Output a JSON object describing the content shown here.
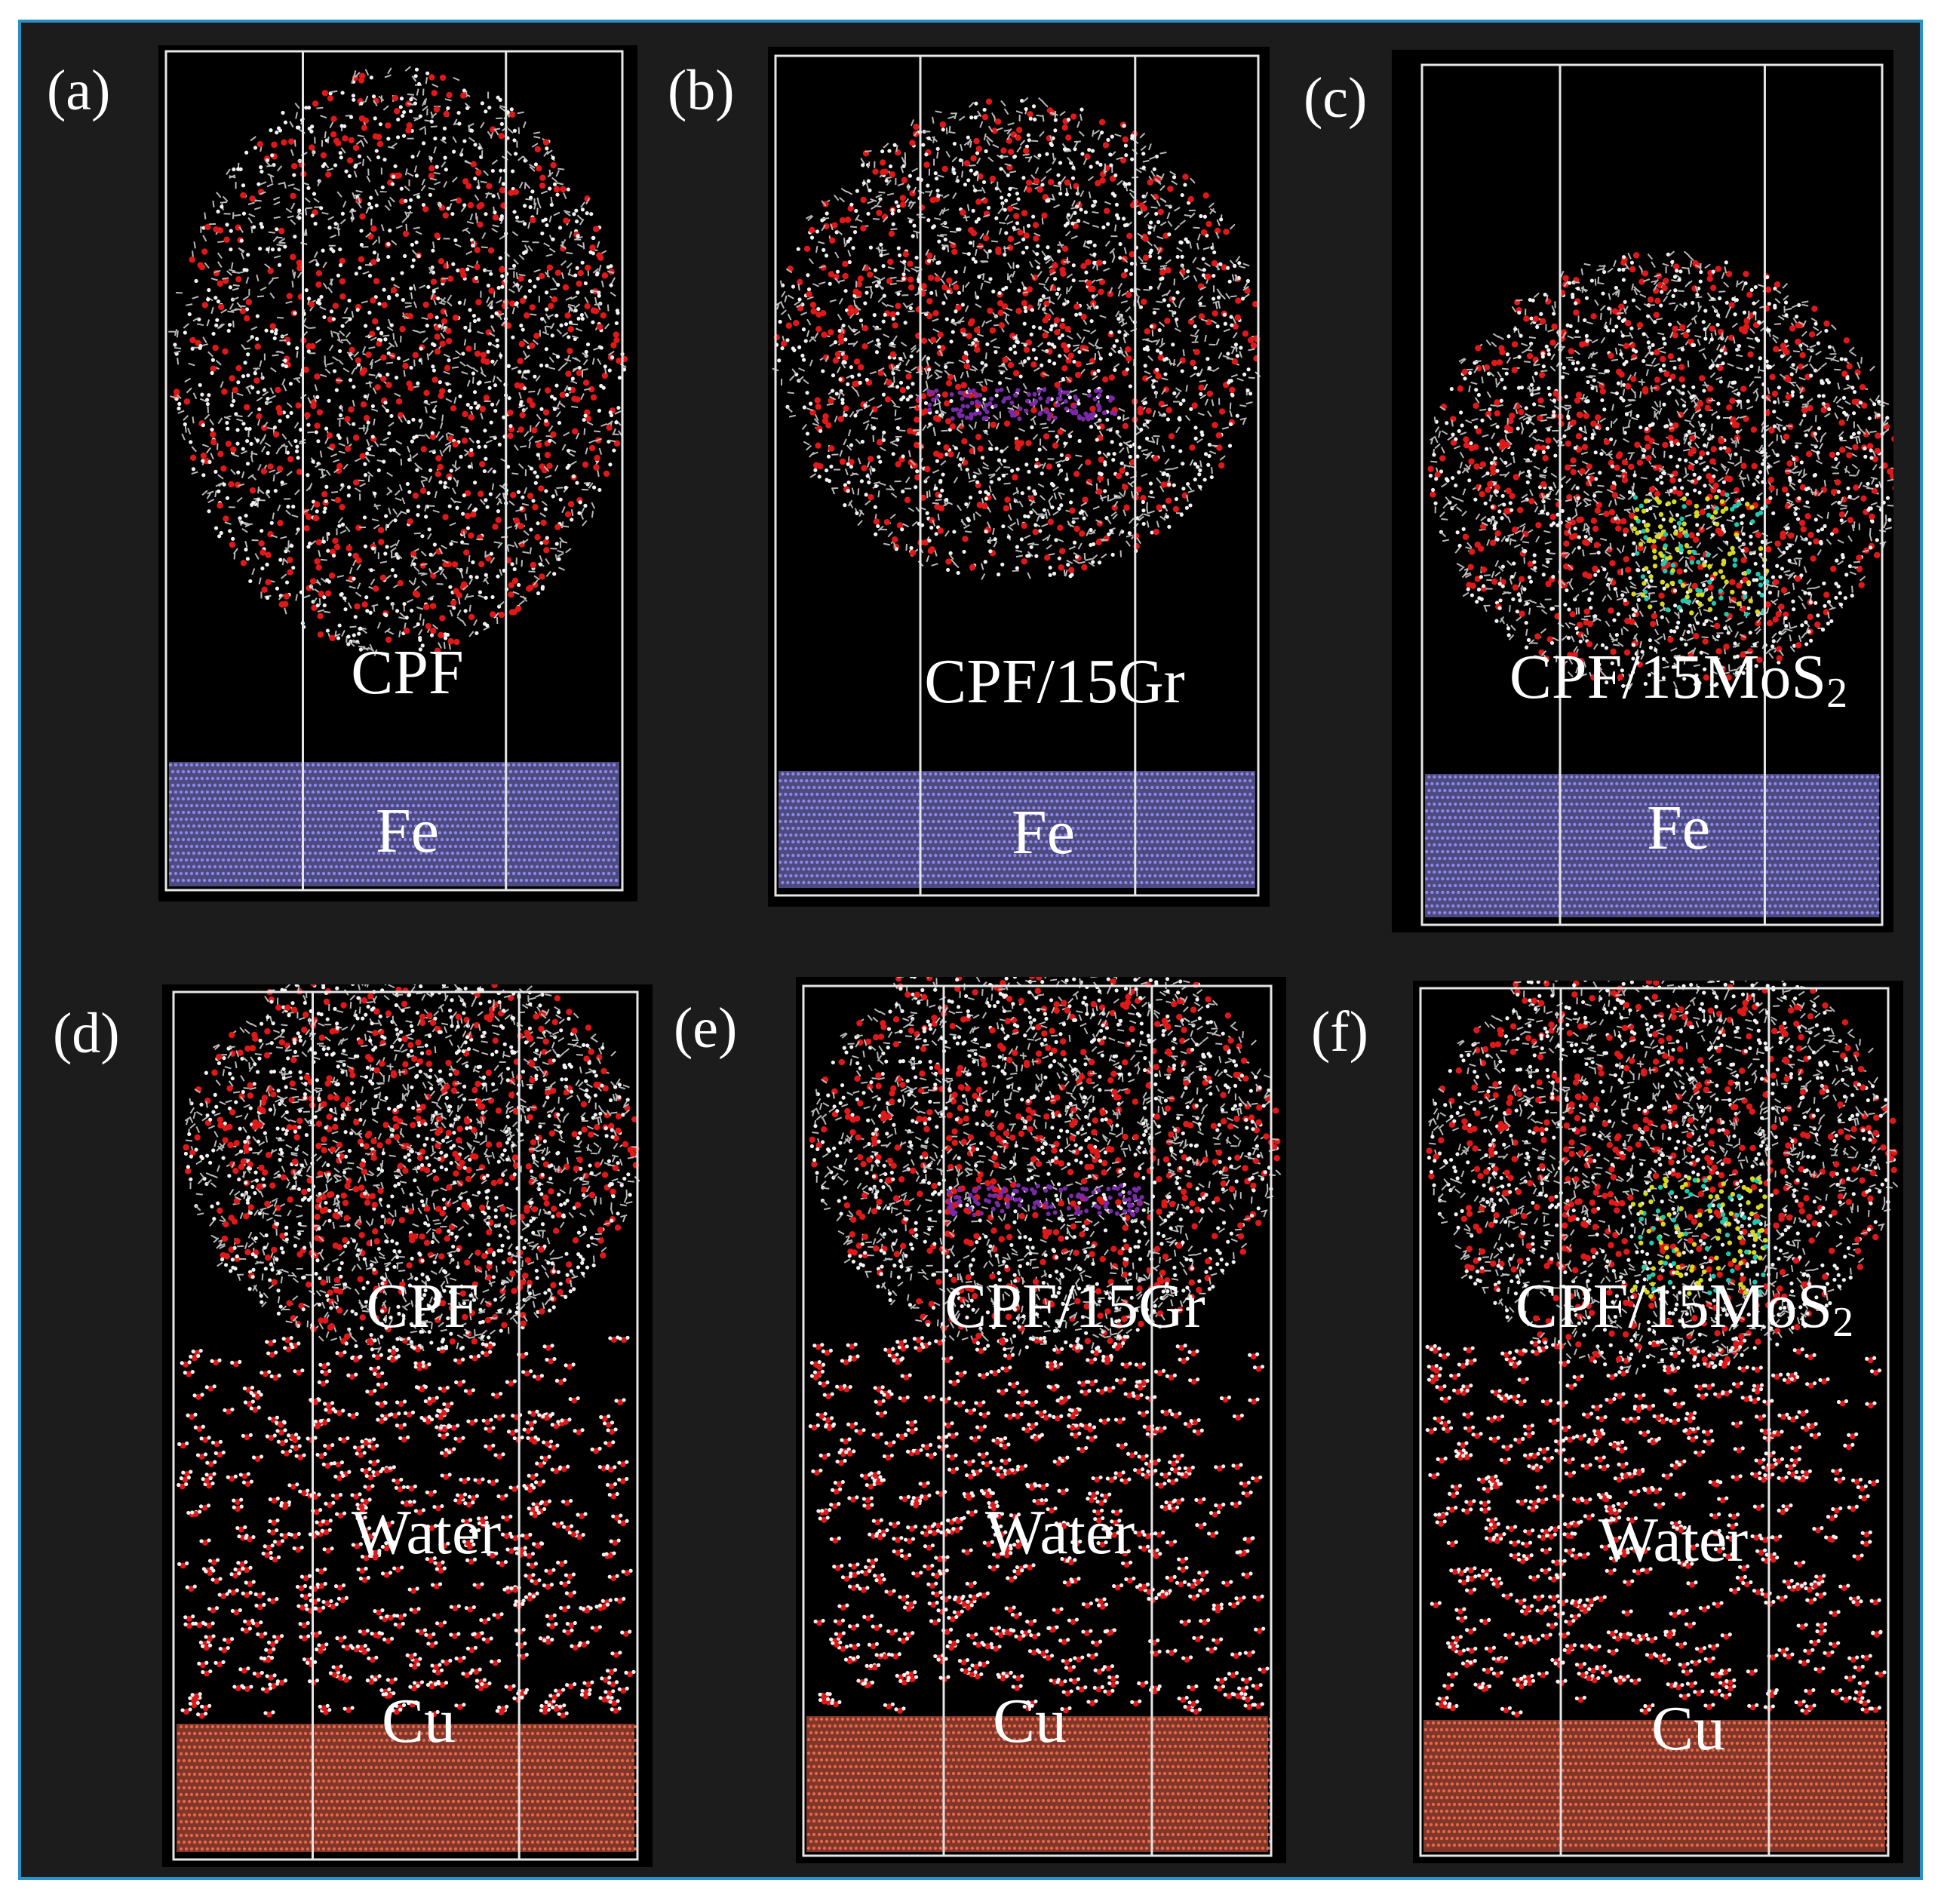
{
  "panels": [
    {
      "id": "a",
      "label": "(a)",
      "material": "CPF",
      "substrate": "Fe",
      "solvent": "",
      "additive": ""
    },
    {
      "id": "b",
      "label": "(b)",
      "material": "CPF/15Gr",
      "substrate": "Fe",
      "solvent": "",
      "additive": "graphene"
    },
    {
      "id": "c",
      "label": "(c)",
      "material_base": "CPF/15MoS",
      "material_sub": "2",
      "substrate": "Fe",
      "solvent": "",
      "additive": "MoS2"
    },
    {
      "id": "d",
      "label": "(d)",
      "material": "CPF",
      "substrate": "Cu",
      "solvent": "Water",
      "additive": ""
    },
    {
      "id": "e",
      "label": "(e)",
      "material": "CPF/15Gr",
      "substrate": "Cu",
      "solvent": "Water",
      "additive": "graphene"
    },
    {
      "id": "f",
      "label": "(f)",
      "material_base": "CPF/15MoS",
      "material_sub": "2",
      "substrate": "Cu",
      "solvent": "Water",
      "additive": "MoS2"
    }
  ],
  "colors": {
    "frame_border": "#2a8fc7",
    "background": "#1c1c1c",
    "panel_bg": "#000000",
    "oxygen": "#e01818",
    "carbon": "#b9b9b9",
    "hydrogen": "#f2f2f2",
    "fe_lattice": "#8c86e8",
    "cu_lattice": "#e8654a",
    "graphene": "#7a2aa8",
    "mos2_s": "#d8d820",
    "mos2_mo": "#20c8b0",
    "cell_edges": "#e6e6e6"
  }
}
